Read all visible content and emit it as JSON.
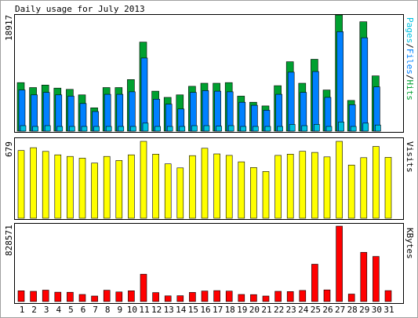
{
  "title": "Daily usage for July 2013",
  "colors": {
    "hits": "#00a030",
    "files": "#0080ff",
    "pages": "#00c0e0",
    "visits": "#ffff00",
    "kbytes": "#ff0000",
    "weekend_label": "#00a030",
    "weekday_label": "#000000"
  },
  "chart_data": [
    {
      "type": "bar",
      "panel": "top",
      "max_label": "18917",
      "legend": [
        "Pages",
        "Files",
        "Hits"
      ],
      "ylim": [
        0,
        18917
      ],
      "categories": [
        "1",
        "2",
        "3",
        "4",
        "5",
        "6",
        "7",
        "8",
        "9",
        "10",
        "11",
        "12",
        "13",
        "14",
        "15",
        "16",
        "17",
        "18",
        "19",
        "20",
        "21",
        "22",
        "23",
        "24",
        "25",
        "26",
        "27",
        "28",
        "29",
        "30",
        "31"
      ],
      "series": [
        {
          "name": "Hits",
          "values": [
            7900,
            7100,
            7500,
            7000,
            6800,
            5900,
            3800,
            7100,
            7100,
            8400,
            14500,
            6500,
            5500,
            5900,
            7300,
            7800,
            7800,
            7900,
            5700,
            4700,
            4100,
            7400,
            11300,
            7800,
            11700,
            6700,
            18900,
            5000,
            17800,
            9000,
            0
          ]
        },
        {
          "name": "Files",
          "values": [
            6700,
            5900,
            6300,
            5900,
            5700,
            4500,
            3200,
            6000,
            6000,
            6400,
            11900,
            5200,
            4400,
            3600,
            6300,
            6600,
            6500,
            6400,
            4700,
            4200,
            3400,
            6000,
            9600,
            6300,
            9700,
            5500,
            16200,
            4300,
            15200,
            7200,
            0
          ]
        },
        {
          "name": "Pages",
          "values": [
            900,
            700,
            900,
            700,
            700,
            600,
            500,
            700,
            700,
            700,
            1300,
            700,
            600,
            600,
            900,
            900,
            800,
            900,
            700,
            600,
            500,
            700,
            1100,
            900,
            1100,
            700,
            1500,
            600,
            1300,
            1000,
            0
          ]
        }
      ]
    },
    {
      "type": "bar",
      "panel": "middle",
      "max_label": "679",
      "legend": [
        "Visits"
      ],
      "ylim": [
        0,
        679
      ],
      "categories": [
        "1",
        "2",
        "3",
        "4",
        "5",
        "6",
        "7",
        "8",
        "9",
        "10",
        "11",
        "12",
        "13",
        "14",
        "15",
        "16",
        "17",
        "18",
        "19",
        "20",
        "21",
        "22",
        "23",
        "24",
        "25",
        "26",
        "27",
        "28",
        "29",
        "30",
        "31"
      ],
      "series": [
        {
          "name": "Visits",
          "values": [
            598,
            623,
            590,
            560,
            546,
            531,
            487,
            546,
            510,
            560,
            679,
            566,
            480,
            445,
            553,
            618,
            568,
            555,
            498,
            448,
            413,
            555,
            566,
            591,
            581,
            542,
            679,
            470,
            535,
            634,
            538
          ]
        }
      ]
    },
    {
      "type": "bar",
      "panel": "bottom",
      "max_label": "828571",
      "legend": [
        "KBytes"
      ],
      "ylim": [
        0,
        828571
      ],
      "categories": [
        "1",
        "2",
        "3",
        "4",
        "5",
        "6",
        "7",
        "8",
        "9",
        "10",
        "11",
        "12",
        "13",
        "14",
        "15",
        "16",
        "17",
        "18",
        "19",
        "20",
        "21",
        "22",
        "23",
        "24",
        "25",
        "26",
        "27",
        "28",
        "29",
        "30",
        "31"
      ],
      "series": [
        {
          "name": "KBytes",
          "values": [
            118000,
            112000,
            125000,
            103000,
            102000,
            78000,
            60000,
            124000,
            105000,
            118000,
            300000,
            98000,
            62000,
            64000,
            100000,
            116000,
            120000,
            115000,
            78000,
            76000,
            60000,
            112000,
            110000,
            122000,
            410000,
            128000,
            828571,
            82000,
            540000,
            495000,
            120000
          ]
        }
      ]
    }
  ]
}
